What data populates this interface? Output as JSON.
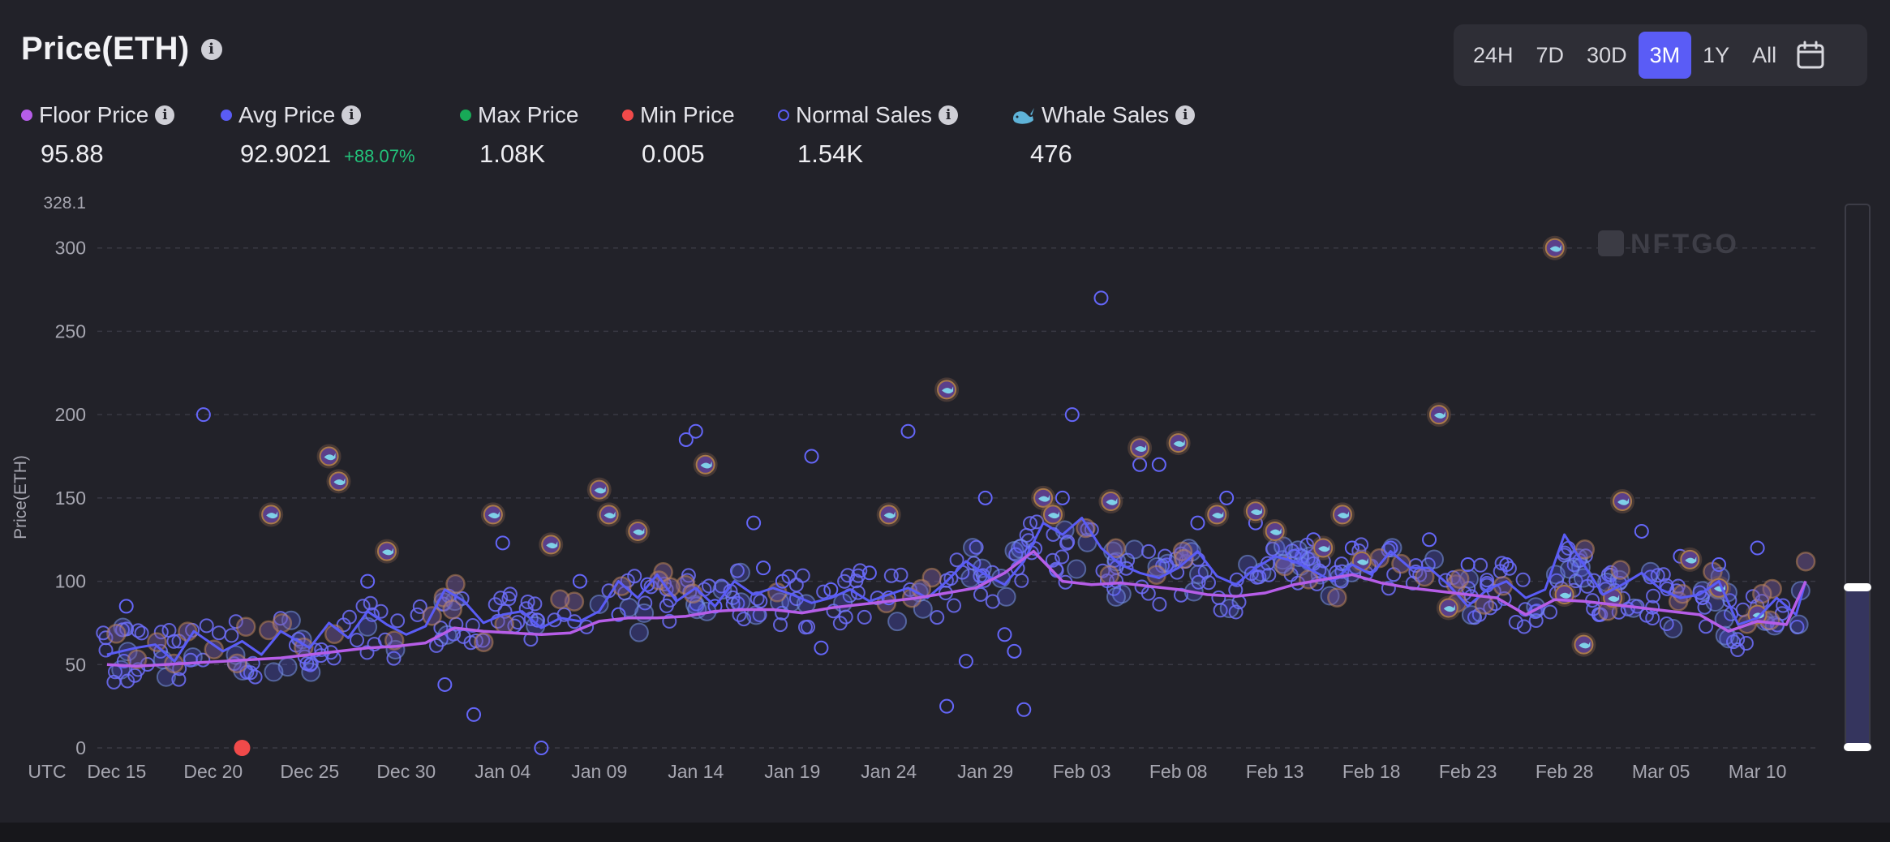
{
  "header": {
    "title": "Price(ETH)"
  },
  "time_range": {
    "options": [
      "24H",
      "7D",
      "30D",
      "3M",
      "1Y",
      "All"
    ],
    "active": "3M"
  },
  "colors": {
    "floor": "#b65de8",
    "avg": "#5a5cf6",
    "max": "#18a957",
    "min": "#f04a4a",
    "accent": "#5a5cf6",
    "whale_glow": "#8a6a2a",
    "bg": "#222229"
  },
  "legend": {
    "floor": {
      "label": "Floor Price",
      "value": "95.88"
    },
    "avg": {
      "label": "Avg Price",
      "value": "92.9021",
      "change": "+88.07%"
    },
    "max": {
      "label": "Max Price",
      "value": "1.08K"
    },
    "min": {
      "label": "Min Price",
      "value": "0.005"
    },
    "normal": {
      "label": "Normal Sales",
      "value": "1.54K"
    },
    "whale": {
      "label": "Whale Sales",
      "value": "476"
    }
  },
  "chart_data": {
    "type": "scatter+line",
    "watermark": "NFTGO",
    "ylabel": "Price(ETH)",
    "ymax_label": "328.1",
    "ylim": [
      0,
      328.1
    ],
    "y_ticks": [
      0,
      50,
      100,
      150,
      200,
      250,
      300
    ],
    "x_start_label": "UTC",
    "x_ticks": [
      "Dec 15",
      "Dec 20",
      "Dec 25",
      "Dec 30",
      "Jan 04",
      "Jan 09",
      "Jan 14",
      "Jan 19",
      "Jan 24",
      "Jan 29",
      "Feb 03",
      "Feb 08",
      "Feb 13",
      "Feb 18",
      "Feb 23",
      "Feb 28",
      "Mar 05",
      "Mar 10"
    ],
    "x_range_days": [
      -1,
      88
    ],
    "tick_day_step": 5,
    "tick_day_start": 0,
    "series": [
      {
        "name": "Floor Price",
        "x": [
          -0.5,
          1,
          2.5,
          4,
          5.5,
          7,
          8.5,
          10,
          11.5,
          13,
          14.5,
          16,
          17.5,
          19,
          20.5,
          22,
          23.5,
          25,
          26.5,
          28,
          29.5,
          31,
          32.5,
          34,
          35.5,
          37,
          38.5,
          40,
          41.5,
          43,
          44.5,
          46,
          47.5,
          49,
          50.5,
          52,
          53.5,
          55,
          56.5,
          58,
          59.5,
          61,
          62.5,
          64,
          65.5,
          67,
          68.5,
          70,
          71.5,
          73,
          74.5,
          76,
          77.5,
          79,
          80.5,
          82,
          83.5,
          85,
          86.5,
          87.5
        ],
        "y": [
          50,
          49,
          50,
          51,
          52,
          53,
          54,
          56,
          58,
          60,
          61,
          63,
          72,
          70,
          69,
          68,
          69,
          76,
          78,
          78,
          79,
          82,
          83,
          83,
          81,
          84,
          86,
          88,
          90,
          93,
          96,
          105,
          118,
          100,
          98,
          99,
          97,
          95,
          92,
          91,
          93,
          98,
          101,
          104,
          99,
          96,
          94,
          92,
          90,
          80,
          89,
          88,
          86,
          84,
          82,
          80,
          70,
          76,
          74,
          100
        ]
      },
      {
        "name": "Avg Price",
        "x": [
          -0.5,
          1,
          2,
          3,
          4,
          5.5,
          6.5,
          7.5,
          8.5,
          10,
          11,
          12,
          13,
          14,
          15,
          16,
          17,
          18,
          19,
          20,
          21,
          22,
          23,
          24,
          25,
          26,
          27,
          28,
          29,
          30,
          31,
          32,
          33,
          34,
          35,
          36,
          37,
          38,
          39,
          40,
          41,
          42,
          43,
          44,
          45,
          46,
          47,
          48,
          49,
          50,
          51,
          52,
          53,
          54,
          55,
          56,
          57,
          58,
          59,
          60,
          61,
          62,
          63,
          64,
          65,
          66,
          67,
          68,
          69,
          70,
          71,
          72,
          73,
          74,
          75,
          76,
          77,
          78,
          79,
          80,
          81,
          82,
          83,
          84,
          85,
          86,
          87,
          87.5
        ],
        "y": [
          56,
          60,
          62,
          52,
          70,
          58,
          64,
          56,
          70,
          60,
          75,
          66,
          82,
          74,
          68,
          73,
          95,
          88,
          75,
          80,
          82,
          72,
          78,
          76,
          82,
          100,
          90,
          104,
          88,
          96,
          85,
          100,
          92,
          96,
          92,
          87,
          90,
          95,
          88,
          92,
          96,
          90,
          100,
          112,
          104,
          98,
          112,
          135,
          128,
          138,
          120,
          110,
          105,
          102,
          108,
          118,
          103,
          98,
          108,
          115,
          112,
          106,
          100,
          110,
          104,
          118,
          108,
          108,
          98,
          85,
          95,
          100,
          90,
          95,
          128,
          110,
          92,
          98,
          105,
          95,
          90,
          92,
          100,
          74,
          78,
          90,
          80,
          100
        ]
      },
      {
        "name": "Min Price",
        "x": [
          6.5
        ],
        "y": [
          0
        ]
      },
      {
        "name": "Normal Sales (outliers)",
        "x": [
          4.5,
          0.5,
          17,
          18.5,
          22,
          29.5,
          30,
          36,
          33,
          41,
          46,
          49,
          43,
          44,
          47,
          46.5,
          51,
          49.5,
          53,
          54,
          57.5,
          59,
          61,
          64,
          70,
          72,
          66,
          56,
          62,
          68,
          79,
          81,
          83,
          85,
          45,
          39,
          37,
          26,
          24,
          27,
          27.5,
          36.5,
          40,
          31,
          34.5,
          20,
          13,
          33.5
        ],
        "y": [
          200,
          85,
          38,
          20,
          0,
          185,
          190,
          175,
          135,
          190,
          68,
          150,
          25,
          52,
          23,
          58,
          270,
          200,
          170,
          170,
          150,
          135,
          115,
          120,
          110,
          110,
          120,
          135,
          125,
          125,
          130,
          115,
          110,
          120,
          150,
          105,
          95,
          80,
          100,
          130,
          98,
          60,
          90,
          85,
          100,
          123,
          100,
          108
        ]
      },
      {
        "name": "Whale Sales (outliers)",
        "x": [
          11,
          25,
          43,
          30.5,
          25.5,
          48,
          48.5,
          53,
          57,
          51.5,
          55,
          68.5,
          69,
          74.5,
          76,
          78,
          60,
          40,
          63.5,
          81.5,
          85,
          19.5,
          8,
          11.5,
          14,
          22.5,
          27,
          59,
          62.5,
          64.5,
          75,
          77.5,
          83
        ],
        "y": [
          175,
          155,
          215,
          170,
          140,
          150,
          140,
          180,
          140,
          148,
          183,
          200,
          84,
          300,
          62,
          148,
          130,
          140,
          140,
          113,
          80,
          140,
          140,
          160,
          118,
          122,
          130,
          142,
          120,
          112,
          92,
          90,
          96
        ]
      }
    ]
  }
}
